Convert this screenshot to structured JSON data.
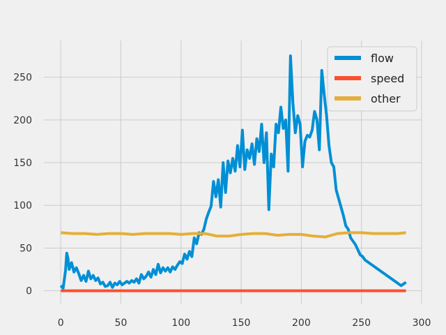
{
  "chart_data": {
    "type": "line",
    "title": "",
    "xlabel": "",
    "ylabel": "",
    "xlim": [
      -14,
      300
    ],
    "ylim": [
      -15,
      293
    ],
    "x_ticks": [
      0,
      50,
      100,
      150,
      200,
      250,
      300
    ],
    "y_ticks": [
      0,
      50,
      100,
      150,
      200,
      250
    ],
    "x_tick_labels": [
      "0",
      "50",
      "100",
      "150",
      "200",
      "250",
      "300"
    ],
    "y_tick_labels": [
      "0",
      "50",
      "100",
      "150",
      "200",
      "250"
    ],
    "grid": true,
    "legend_position": "top-right",
    "series": [
      {
        "name": "flow",
        "color": "#008fd5",
        "points": [
          [
            0,
            6
          ],
          [
            2,
            3
          ],
          [
            4,
            24
          ],
          [
            5,
            44
          ],
          [
            6,
            38
          ],
          [
            7,
            25
          ],
          [
            9,
            33
          ],
          [
            11,
            22
          ],
          [
            13,
            27
          ],
          [
            15,
            20
          ],
          [
            17,
            12
          ],
          [
            19,
            18
          ],
          [
            21,
            11
          ],
          [
            23,
            23
          ],
          [
            25,
            14
          ],
          [
            27,
            18
          ],
          [
            29,
            12
          ],
          [
            31,
            15
          ],
          [
            33,
            8
          ],
          [
            35,
            10
          ],
          [
            37,
            5
          ],
          [
            39,
            6
          ],
          [
            41,
            10
          ],
          [
            43,
            4
          ],
          [
            45,
            9
          ],
          [
            47,
            7
          ],
          [
            49,
            11
          ],
          [
            51,
            7
          ],
          [
            53,
            9
          ],
          [
            55,
            11
          ],
          [
            57,
            9
          ],
          [
            59,
            12
          ],
          [
            61,
            10
          ],
          [
            63,
            14
          ],
          [
            65,
            9
          ],
          [
            67,
            19
          ],
          [
            69,
            14
          ],
          [
            71,
            17
          ],
          [
            73,
            22
          ],
          [
            75,
            16
          ],
          [
            77,
            25
          ],
          [
            79,
            19
          ],
          [
            81,
            31
          ],
          [
            83,
            21
          ],
          [
            85,
            27
          ],
          [
            87,
            23
          ],
          [
            89,
            27
          ],
          [
            91,
            22
          ],
          [
            93,
            28
          ],
          [
            95,
            25
          ],
          [
            97,
            30
          ],
          [
            99,
            34
          ],
          [
            101,
            32
          ],
          [
            103,
            43
          ],
          [
            105,
            37
          ],
          [
            107,
            46
          ],
          [
            109,
            40
          ],
          [
            111,
            62
          ],
          [
            113,
            55
          ],
          [
            115,
            68
          ],
          [
            117,
            66
          ],
          [
            119,
            72
          ],
          [
            121,
            84
          ],
          [
            123,
            92
          ],
          [
            125,
            99
          ],
          [
            127,
            128
          ],
          [
            129,
            110
          ],
          [
            131,
            130
          ],
          [
            133,
            98
          ],
          [
            135,
            150
          ],
          [
            137,
            115
          ],
          [
            139,
            152
          ],
          [
            141,
            138
          ],
          [
            143,
            155
          ],
          [
            145,
            140
          ],
          [
            147,
            170
          ],
          [
            149,
            145
          ],
          [
            151,
            188
          ],
          [
            153,
            142
          ],
          [
            155,
            165
          ],
          [
            157,
            155
          ],
          [
            159,
            172
          ],
          [
            161,
            148
          ],
          [
            163,
            178
          ],
          [
            165,
            163
          ],
          [
            167,
            195
          ],
          [
            169,
            150
          ],
          [
            171,
            185
          ],
          [
            173,
            95
          ],
          [
            175,
            160
          ],
          [
            177,
            145
          ],
          [
            179,
            195
          ],
          [
            181,
            185
          ],
          [
            183,
            215
          ],
          [
            185,
            190
          ],
          [
            187,
            200
          ],
          [
            189,
            140
          ],
          [
            191,
            275
          ],
          [
            193,
            220
          ],
          [
            195,
            185
          ],
          [
            197,
            205
          ],
          [
            199,
            195
          ],
          [
            201,
            145
          ],
          [
            203,
            175
          ],
          [
            205,
            182
          ],
          [
            207,
            180
          ],
          [
            209,
            188
          ],
          [
            211,
            210
          ],
          [
            213,
            200
          ],
          [
            215,
            165
          ],
          [
            217,
            258
          ],
          [
            219,
            230
          ],
          [
            221,
            205
          ],
          [
            223,
            170
          ],
          [
            225,
            150
          ],
          [
            227,
            145
          ],
          [
            229,
            118
          ],
          [
            231,
            108
          ],
          [
            233,
            98
          ],
          [
            235,
            88
          ],
          [
            237,
            76
          ],
          [
            239,
            72
          ],
          [
            241,
            62
          ],
          [
            243,
            58
          ],
          [
            245,
            54
          ],
          [
            247,
            48
          ],
          [
            249,
            42
          ],
          [
            251,
            40
          ],
          [
            253,
            36
          ],
          [
            255,
            34
          ],
          [
            257,
            32
          ],
          [
            259,
            30
          ],
          [
            261,
            28
          ],
          [
            263,
            26
          ],
          [
            265,
            24
          ],
          [
            267,
            22
          ],
          [
            269,
            20
          ],
          [
            271,
            18
          ],
          [
            273,
            16
          ],
          [
            275,
            14
          ],
          [
            277,
            12
          ],
          [
            279,
            10
          ],
          [
            281,
            8
          ],
          [
            283,
            6
          ],
          [
            285,
            8
          ],
          [
            287,
            10
          ]
        ]
      },
      {
        "name": "speed",
        "color": "#fc4f30",
        "points": [
          [
            0,
            0
          ],
          [
            287,
            0
          ]
        ]
      },
      {
        "name": "other",
        "color": "#e5ae38",
        "points": [
          [
            0,
            68
          ],
          [
            10,
            67
          ],
          [
            20,
            67
          ],
          [
            30,
            66
          ],
          [
            40,
            67
          ],
          [
            50,
            67
          ],
          [
            60,
            66
          ],
          [
            70,
            67
          ],
          [
            80,
            67
          ],
          [
            90,
            67
          ],
          [
            100,
            66
          ],
          [
            110,
            67
          ],
          [
            120,
            67
          ],
          [
            130,
            64
          ],
          [
            140,
            64
          ],
          [
            150,
            66
          ],
          [
            160,
            67
          ],
          [
            170,
            67
          ],
          [
            180,
            65
          ],
          [
            190,
            66
          ],
          [
            200,
            66
          ],
          [
            210,
            64
          ],
          [
            220,
            63
          ],
          [
            230,
            67
          ],
          [
            240,
            68
          ],
          [
            250,
            68
          ],
          [
            260,
            67
          ],
          [
            270,
            67
          ],
          [
            280,
            67
          ],
          [
            287,
            68
          ]
        ]
      }
    ]
  }
}
